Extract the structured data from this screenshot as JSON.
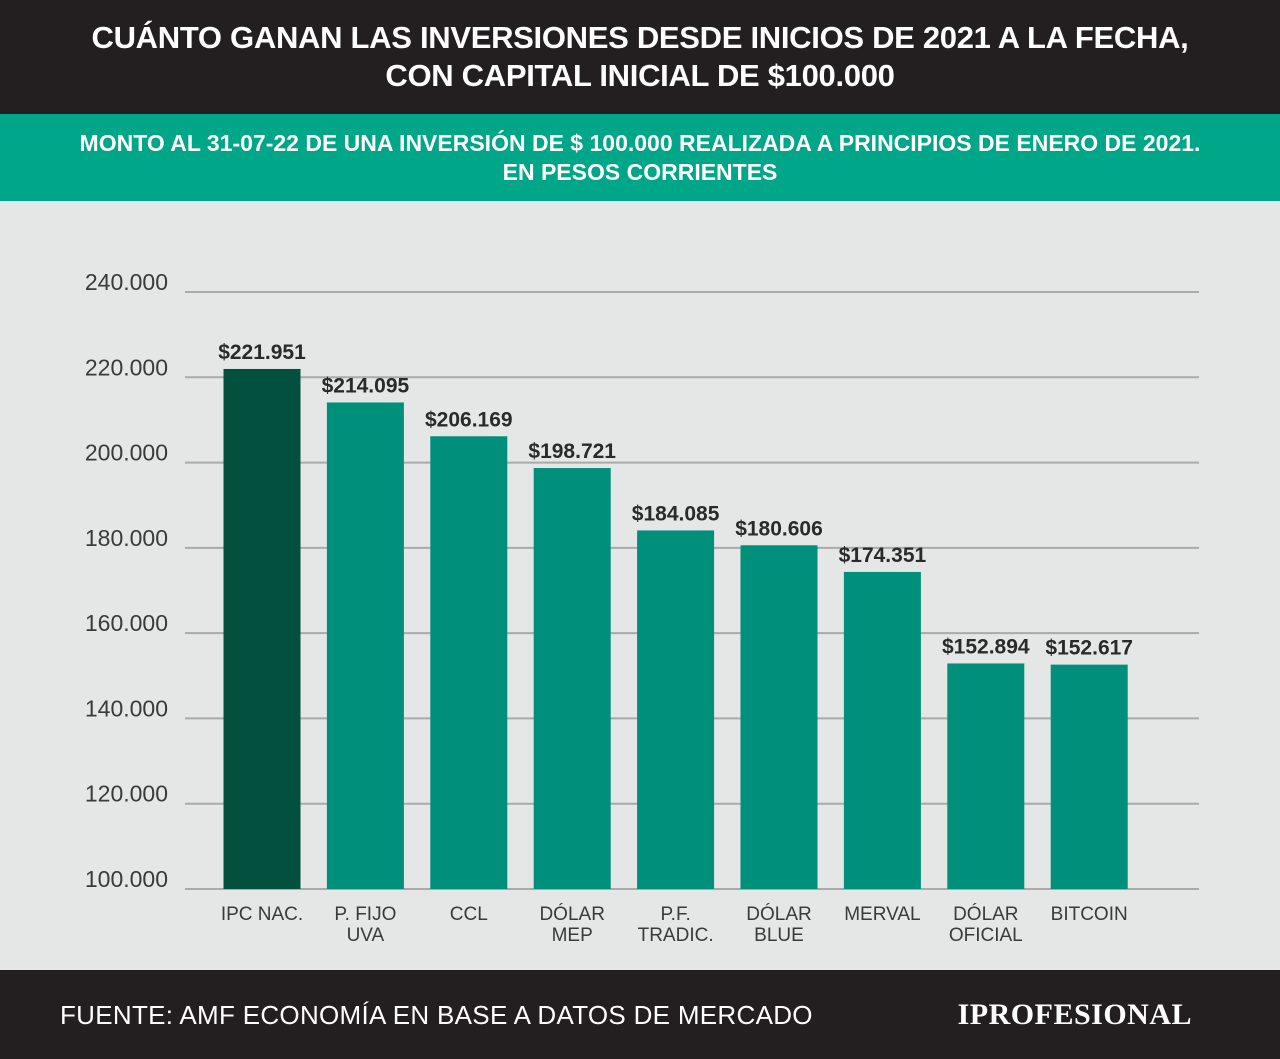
{
  "header": {
    "title_line1": "CUÁNTO GANAN LAS INVERSIONES DESDE INICIOS DE 2021 A LA FECHA,",
    "title_line2": "CON CAPITAL INICIAL DE $100.000"
  },
  "subheader": {
    "line1": "MONTO AL 31-07-22 DE UNA INVERSIÓN DE $ 100.000 REALIZADA A PRINCIPIOS DE ENERO DE 2021.",
    "line2": "EN PESOS CORRIENTES"
  },
  "footer": {
    "source": "FUENTE: AMF ECONOMÍA EN BASE A DATOS DE MERCADO",
    "brand": "IPROFESIONAL"
  },
  "colors": {
    "header_bg": "#231f20",
    "subheader_bg": "#00a688",
    "bar": "#008f7a",
    "bar_highlight": "#03503e",
    "grid": "#a9aaaa",
    "background": "#e5e6e6"
  },
  "chart_data": {
    "type": "bar",
    "categories": [
      [
        "IPC  NAC."
      ],
      [
        "P. FIJO",
        "UVA"
      ],
      [
        "CCL"
      ],
      [
        "DÓLAR",
        "MEP"
      ],
      [
        "P.F.",
        "TRADIC."
      ],
      [
        "DÓLAR",
        "BLUE"
      ],
      [
        "MERVAL"
      ],
      [
        "DÓLAR",
        "OFICIAL"
      ],
      [
        "BITCOIN"
      ]
    ],
    "values": [
      221951,
      214095,
      206169,
      198721,
      184085,
      180606,
      174351,
      152894,
      152617
    ],
    "data_labels": [
      "$221.951",
      "$214.095",
      "$206.169",
      "$198.721",
      "$184.085",
      "$180.606",
      "$174.351",
      "$152.894",
      "$152.617"
    ],
    "highlight_index": 0,
    "ylim": [
      100000,
      240000
    ],
    "yticks": [
      100000,
      120000,
      140000,
      160000,
      180000,
      200000,
      220000,
      240000
    ],
    "ytick_labels": [
      "100.000",
      "120.000",
      "140.000",
      "160.000",
      "180.000",
      "200.000",
      "220.000",
      "240.000"
    ],
    "grid": true,
    "legend": "none"
  }
}
